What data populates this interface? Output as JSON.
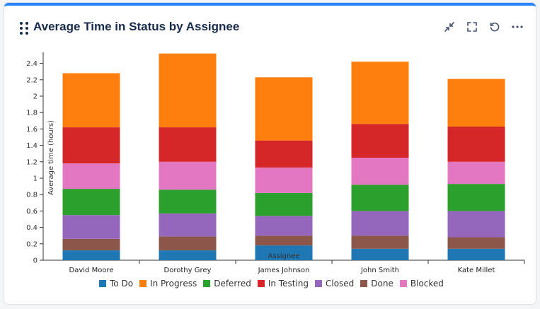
{
  "header": {
    "title": "Average Time in Status by Assignee"
  },
  "actions": [
    "minimize-icon",
    "fullscreen-icon",
    "refresh-icon",
    "more-icon"
  ],
  "chart_data": {
    "type": "bar",
    "stacked": true,
    "title": "Average Time in Status by Assignee",
    "xlabel": "Assignee",
    "ylabel": "Average time (hours)",
    "ylim": [
      0,
      2.5
    ],
    "yticks": [
      "0",
      "0.2",
      "0.4",
      "0.6",
      "0.8",
      "1",
      "1.2",
      "1.4",
      "1.6",
      "1.8",
      "2",
      "2.2",
      "2.4"
    ],
    "categories": [
      "David Moore",
      "Dorothy Grey",
      "James Johnson",
      "John Smith",
      "Kate Millet"
    ],
    "series": [
      {
        "name": "To Do",
        "color": "#1f77b4",
        "values": [
          0.12,
          0.12,
          0.18,
          0.14,
          0.14
        ]
      },
      {
        "name": "Done",
        "color": "#8c564b",
        "values": [
          0.14,
          0.17,
          0.12,
          0.16,
          0.14
        ]
      },
      {
        "name": "Closed",
        "color": "#9467bd",
        "values": [
          0.29,
          0.28,
          0.24,
          0.3,
          0.32
        ]
      },
      {
        "name": "Deferred",
        "color": "#2ca02c",
        "values": [
          0.32,
          0.29,
          0.28,
          0.32,
          0.33
        ]
      },
      {
        "name": "Blocked",
        "color": "#e377c2",
        "values": [
          0.31,
          0.34,
          0.31,
          0.33,
          0.27
        ]
      },
      {
        "name": "In Testing",
        "color": "#d62728",
        "values": [
          0.44,
          0.42,
          0.33,
          0.41,
          0.43
        ]
      },
      {
        "name": "In Progress",
        "color": "#ff7f0e",
        "values": [
          0.66,
          0.9,
          0.77,
          0.76,
          0.58
        ]
      }
    ],
    "legend": [
      {
        "name": "To Do",
        "color": "#1f77b4"
      },
      {
        "name": "In Progress",
        "color": "#ff7f0e"
      },
      {
        "name": "Deferred",
        "color": "#2ca02c"
      },
      {
        "name": "In Testing",
        "color": "#d62728"
      },
      {
        "name": "Closed",
        "color": "#9467bd"
      },
      {
        "name": "Done",
        "color": "#8c564b"
      },
      {
        "name": "Blocked",
        "color": "#e377c2"
      }
    ],
    "legend_position": "bottom",
    "tooltip": {
      "text": "Assignee"
    }
  }
}
